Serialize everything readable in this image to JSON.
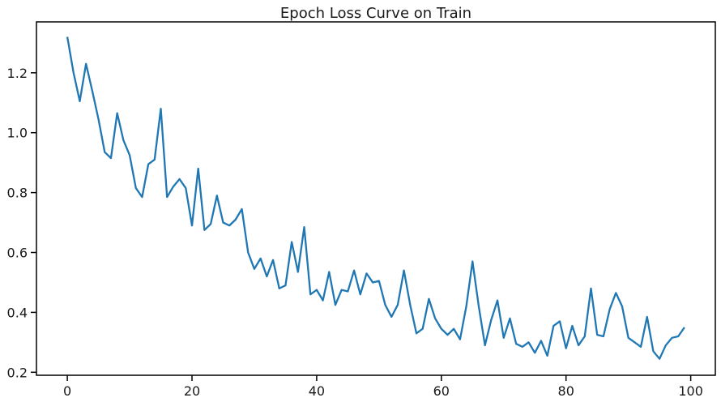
{
  "chart_data": {
    "type": "line",
    "title": "Epoch Loss Curve on Train",
    "xlabel": "",
    "ylabel": "",
    "xlim": [
      -4.95,
      103.95
    ],
    "ylim": [
      0.19,
      1.37
    ],
    "xticks": [
      0,
      20,
      40,
      60,
      80,
      100
    ],
    "yticks": [
      0.2,
      0.4,
      0.6,
      0.8,
      1.0,
      1.2
    ],
    "xtick_labels": [
      "0",
      "20",
      "40",
      "60",
      "80",
      "100"
    ],
    "ytick_labels": [
      "0.2",
      "0.4",
      "0.6",
      "0.8",
      "1.0",
      "1.2"
    ],
    "grid": false,
    "legend": "none",
    "series": [
      {
        "color": "#1f77b4",
        "x": [
          0,
          1,
          2,
          3,
          4,
          5,
          6,
          7,
          8,
          9,
          10,
          11,
          12,
          13,
          14,
          15,
          16,
          17,
          18,
          19,
          20,
          21,
          22,
          23,
          24,
          25,
          26,
          27,
          28,
          29,
          30,
          31,
          32,
          33,
          34,
          35,
          36,
          37,
          38,
          39,
          40,
          41,
          42,
          43,
          44,
          45,
          46,
          47,
          48,
          49,
          50,
          51,
          52,
          53,
          54,
          55,
          56,
          57,
          58,
          59,
          60,
          61,
          62,
          63,
          64,
          65,
          66,
          67,
          68,
          69,
          70,
          71,
          72,
          73,
          74,
          75,
          76,
          77,
          78,
          79,
          80,
          81,
          82,
          83,
          84,
          85,
          86,
          87,
          88,
          89,
          90,
          91,
          92,
          93,
          94,
          95,
          96,
          97,
          98,
          99
        ],
        "y": [
          1.32,
          1.2,
          1.105,
          1.23,
          1.14,
          1.045,
          0.935,
          0.915,
          1.065,
          0.975,
          0.925,
          0.815,
          0.785,
          0.895,
          0.91,
          1.08,
          0.785,
          0.82,
          0.845,
          0.815,
          0.69,
          0.88,
          0.675,
          0.695,
          0.79,
          0.7,
          0.69,
          0.71,
          0.745,
          0.6,
          0.545,
          0.58,
          0.52,
          0.575,
          0.48,
          0.49,
          0.635,
          0.535,
          0.685,
          0.46,
          0.475,
          0.44,
          0.535,
          0.425,
          0.475,
          0.47,
          0.54,
          0.46,
          0.53,
          0.5,
          0.505,
          0.425,
          0.385,
          0.425,
          0.54,
          0.425,
          0.33,
          0.345,
          0.445,
          0.38,
          0.345,
          0.325,
          0.345,
          0.31,
          0.42,
          0.57,
          0.42,
          0.29,
          0.375,
          0.44,
          0.315,
          0.38,
          0.295,
          0.285,
          0.3,
          0.265,
          0.305,
          0.255,
          0.355,
          0.37,
          0.28,
          0.355,
          0.29,
          0.32,
          0.48,
          0.325,
          0.32,
          0.41,
          0.465,
          0.42,
          0.315,
          0.3,
          0.285,
          0.385,
          0.27,
          0.245,
          0.29,
          0.315,
          0.32,
          0.35
        ]
      }
    ]
  }
}
